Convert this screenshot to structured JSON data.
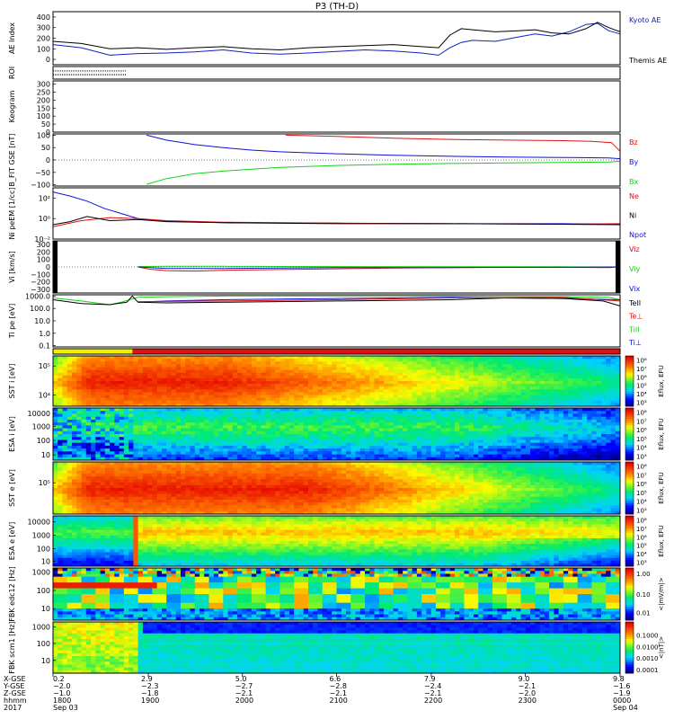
{
  "figure_title": "P3 (TH-D)",
  "colors": {
    "red": "#dd1111",
    "green": "#18d018",
    "blue": "#1010dd",
    "black": "#000000",
    "kyoto": "#1020c0",
    "roi_red": "#cc3300",
    "roi_blue": "#2233aa"
  },
  "chart_data": [
    {
      "id": "ae",
      "type": "line",
      "ylabel": "AE Index",
      "ylim": [
        -50,
        450
      ],
      "yticks": [
        "400",
        "300",
        "200",
        "100",
        "0"
      ],
      "ytick_values": [
        400,
        300,
        200,
        100,
        0
      ],
      "legend": [
        "Kyoto AE",
        "Themis AE"
      ],
      "series": [
        {
          "name": "Kyoto AE",
          "color": "#1020c0",
          "x": [
            0.0,
            0.05,
            0.1,
            0.15,
            0.2,
            0.25,
            0.3,
            0.35,
            0.4,
            0.45,
            0.5,
            0.55,
            0.6,
            0.65,
            0.68,
            0.7,
            0.72,
            0.74,
            0.78,
            0.82,
            0.85,
            0.88,
            0.91,
            0.94,
            0.96,
            0.98,
            1.0
          ],
          "y": [
            140,
            110,
            40,
            55,
            60,
            70,
            90,
            60,
            50,
            60,
            75,
            90,
            80,
            60,
            40,
            110,
            160,
            180,
            170,
            210,
            240,
            220,
            260,
            330,
            340,
            270,
            240
          ]
        },
        {
          "name": "Themis AE",
          "color": "#000000",
          "x": [
            0.0,
            0.05,
            0.1,
            0.15,
            0.2,
            0.25,
            0.3,
            0.35,
            0.4,
            0.45,
            0.5,
            0.55,
            0.6,
            0.65,
            0.68,
            0.7,
            0.72,
            0.74,
            0.78,
            0.82,
            0.85,
            0.88,
            0.91,
            0.94,
            0.96,
            0.98,
            1.0
          ],
          "y": [
            170,
            150,
            100,
            110,
            95,
            110,
            120,
            100,
            90,
            110,
            120,
            130,
            140,
            120,
            110,
            230,
            290,
            280,
            260,
            270,
            280,
            250,
            240,
            290,
            350,
            300,
            260
          ]
        }
      ]
    },
    {
      "id": "roi",
      "type": "line",
      "ylabel": "ROI",
      "bars": [
        {
          "name": "roi-red",
          "color": "#cc3300",
          "x0": 0.0,
          "x1": 0.13
        },
        {
          "name": "roi-blue",
          "color": "#2233aa",
          "x0": 0.0,
          "x1": 0.13
        }
      ]
    },
    {
      "id": "keogram",
      "type": "line",
      "ylabel": "Keogram",
      "ylim": [
        0,
        320
      ],
      "yticks": [
        "300",
        "250",
        "200",
        "150",
        "100",
        "50",
        "0"
      ],
      "ytick_values": [
        300,
        250,
        200,
        150,
        100,
        50,
        0
      ]
    },
    {
      "id": "bfield",
      "type": "line",
      "ylabel": "B_FIT GSE [nT]",
      "ylim": [
        -105,
        105
      ],
      "yticks": [
        "100",
        "50",
        "0",
        "−50",
        "−100"
      ],
      "ytick_values": [
        100,
        50,
        0,
        -50,
        -100
      ],
      "legend": [
        "Bz",
        "By",
        "Bx"
      ],
      "series": [
        {
          "name": "Bz",
          "color": "#dd1111",
          "x": [
            0.41,
            0.5,
            0.6,
            0.7,
            0.8,
            0.9,
            0.95,
            0.985,
            1.0
          ],
          "y": [
            100,
            95,
            88,
            83,
            80,
            78,
            75,
            70,
            35
          ]
        },
        {
          "name": "By",
          "color": "#1010dd",
          "x": [
            0.165,
            0.2,
            0.25,
            0.3,
            0.35,
            0.4,
            0.5,
            0.6,
            0.7,
            0.8,
            0.9,
            0.98,
            1.0
          ],
          "y": [
            100,
            80,
            62,
            50,
            40,
            33,
            25,
            19,
            15,
            12,
            10,
            8,
            5
          ]
        },
        {
          "name": "Bx",
          "color": "#18d018",
          "x": [
            0.165,
            0.2,
            0.25,
            0.3,
            0.35,
            0.4,
            0.5,
            0.6,
            0.7,
            0.8,
            0.9,
            0.98,
            1.0
          ],
          "y": [
            -98,
            -75,
            -55,
            -45,
            -37,
            -30,
            -22,
            -17,
            -14,
            -12,
            -10,
            -8,
            -5
          ]
        }
      ]
    },
    {
      "id": "density",
      "type": "line",
      "ylabel": "Ni peEM [1/cc]",
      "ylim": [
        -2,
        3
      ],
      "yticks": [
        "10²",
        "10⁰",
        "10⁻²"
      ],
      "ytick_values": [
        2,
        0,
        -2
      ],
      "legend": [
        "Ne",
        "Ni",
        "Npot"
      ],
      "series": [
        {
          "name": "Npot",
          "color": "#1010dd",
          "x": [
            0.0,
            0.03,
            0.06,
            0.09,
            0.12,
            0.15,
            0.2,
            0.3,
            0.5,
            0.7,
            0.9,
            1.0
          ],
          "y": [
            2.6,
            2.2,
            1.7,
            1.0,
            0.5,
            0.0,
            -0.25,
            -0.4,
            -0.45,
            -0.5,
            -0.5,
            -0.55
          ]
        },
        {
          "name": "Ne",
          "color": "#dd1111",
          "x": [
            0.0,
            0.05,
            0.1,
            0.15,
            0.2,
            0.3,
            0.5,
            0.7,
            0.9,
            1.0
          ],
          "y": [
            -0.8,
            -0.2,
            0.1,
            0.0,
            -0.2,
            -0.35,
            -0.45,
            -0.5,
            -0.55,
            -0.5
          ]
        },
        {
          "name": "Ni",
          "color": "#000000",
          "x": [
            0.0,
            0.03,
            0.06,
            0.1,
            0.15,
            0.2,
            0.3,
            0.5,
            0.7,
            0.9,
            1.0
          ],
          "y": [
            -0.6,
            -0.3,
            0.2,
            -0.2,
            -0.1,
            -0.3,
            -0.4,
            -0.5,
            -0.5,
            -0.55,
            -0.6
          ]
        }
      ]
    },
    {
      "id": "velocity",
      "type": "line",
      "ylabel": "Vi [km/s]",
      "ylim": [
        -350,
        350
      ],
      "yticks": [
        "300",
        "200",
        "100",
        "0",
        "−100",
        "−200",
        "−300"
      ],
      "ytick_values": [
        300,
        200,
        100,
        0,
        -100,
        -200,
        -300
      ],
      "legend": [
        "Viz",
        "Viy",
        "Vix"
      ],
      "series": [
        {
          "name": "Viz",
          "color": "#dd1111",
          "x": [
            0.15,
            0.17,
            0.2,
            0.25,
            0.3,
            0.4,
            0.5,
            0.6,
            0.7,
            0.8,
            0.9,
            0.98,
            1.0
          ],
          "y": [
            0,
            -30,
            -50,
            -55,
            -45,
            -35,
            -25,
            -15,
            -10,
            -5,
            -5,
            -10,
            0
          ]
        },
        {
          "name": "Viy",
          "color": "#18d018",
          "x": [
            0.15,
            0.2,
            0.3,
            0.5,
            0.7,
            0.9,
            1.0
          ],
          "y": [
            5,
            10,
            8,
            5,
            3,
            2,
            0
          ]
        },
        {
          "name": "Vix",
          "color": "#1010dd",
          "x": [
            0.15,
            0.2,
            0.3,
            0.4,
            0.5,
            0.7,
            0.9,
            1.0
          ],
          "y": [
            0,
            -20,
            -20,
            -15,
            -10,
            -8,
            -5,
            0
          ]
        }
      ]
    },
    {
      "id": "temperature",
      "type": "line",
      "ylabel": "Ti pe [eV]",
      "ylim": [
        -1.1,
        3.1
      ],
      "yticks": [
        "1000.0",
        "100.0",
        "10.0",
        "1.0",
        "0.1"
      ],
      "ytick_values": [
        3,
        2,
        1,
        0,
        -1
      ],
      "legend": [
        "TeII",
        "Te⊥",
        "TiII",
        "Ti⊥"
      ],
      "series": [
        {
          "name": "TiII",
          "color": "#18d018",
          "x": [
            0.0,
            0.05,
            0.1,
            0.12,
            0.15,
            0.2,
            0.3,
            0.5,
            0.7,
            0.9,
            0.98,
            1.0
          ],
          "y": [
            2.85,
            2.6,
            2.3,
            2.5,
            2.9,
            2.95,
            3.0,
            3.0,
            3.0,
            2.95,
            2.9,
            2.7
          ]
        },
        {
          "name": "Ti⊥",
          "color": "#1010dd",
          "x": [
            0.15,
            0.2,
            0.3,
            0.4,
            0.5,
            0.6,
            0.7,
            0.8,
            0.9,
            1.0
          ],
          "y": [
            2.5,
            2.6,
            2.7,
            2.75,
            2.8,
            2.85,
            2.9,
            2.85,
            2.8,
            2.7
          ]
        },
        {
          "name": "TeII",
          "color": "#000000",
          "x": [
            0.0,
            0.05,
            0.1,
            0.13,
            0.14,
            0.15,
            0.2,
            0.3,
            0.5,
            0.7,
            0.8,
            0.9,
            0.97,
            1.0
          ],
          "y": [
            2.7,
            2.4,
            2.3,
            2.5,
            3.0,
            2.5,
            2.45,
            2.5,
            2.6,
            2.7,
            2.85,
            2.8,
            2.6,
            2.2
          ]
        },
        {
          "name": "Te⊥",
          "color": "#dd1111",
          "x": [
            0.15,
            0.3,
            0.5,
            0.7,
            0.9,
            1.0
          ],
          "y": [
            2.55,
            2.6,
            2.7,
            2.85,
            2.9,
            2.6
          ]
        }
      ]
    },
    {
      "id": "mode",
      "type": "heatmap",
      "ylabel": "",
      "segments": [
        {
          "x0": 0.0,
          "x1": 0.14,
          "color": "#f0f000"
        },
        {
          "x0": 0.14,
          "x1": 1.0,
          "color": "#e01010"
        }
      ]
    },
    {
      "id": "sst_i",
      "type": "heatmap",
      "ylabel": "SST i [eV]",
      "yticks": [
        "10⁵",
        "10⁴"
      ],
      "ytick_values": [
        0.2,
        0.78
      ],
      "colorbar_ticks": [
        "10⁸",
        "10⁷",
        "10⁶",
        "10⁵",
        "10⁴",
        "10³"
      ],
      "colorbar_label": "Eflux, EFU",
      "profile": "sst",
      "peak": 0.3,
      "decay": 0.68
    },
    {
      "id": "esa_i",
      "type": "heatmap",
      "ylabel": "ESA i [eV]",
      "yticks": [
        "10000",
        "1000",
        "100",
        "10"
      ],
      "ytick_values": [
        0.1,
        0.35,
        0.62,
        0.9
      ],
      "colorbar_ticks": [
        "10⁸",
        "10⁷",
        "10⁶",
        "10⁵",
        "10⁴",
        "10³"
      ],
      "colorbar_label": "Eflux, EFU",
      "profile": "esa_i"
    },
    {
      "id": "sst_e",
      "type": "heatmap",
      "ylabel": "SST e [eV]",
      "yticks": [
        "10⁵"
      ],
      "ytick_values": [
        0.4
      ],
      "colorbar_ticks": [
        "10⁸",
        "10⁷",
        "10⁶",
        "10⁵",
        "10⁴",
        "10³"
      ],
      "colorbar_label": "Eflux, EFU",
      "profile": "sst",
      "peak": 0.45,
      "decay": 0.9
    },
    {
      "id": "esa_e",
      "type": "heatmap",
      "ylabel": "ESA e [eV]",
      "yticks": [
        "10000",
        "1000",
        "100",
        "10"
      ],
      "ytick_values": [
        0.12,
        0.38,
        0.65,
        0.9
      ],
      "colorbar_ticks": [
        "10⁸",
        "10⁷",
        "10⁶",
        "10⁵",
        "10⁴",
        "10³"
      ],
      "colorbar_label": "Eflux, EFU",
      "profile": "esa_e"
    },
    {
      "id": "fbk_edc",
      "type": "heatmap",
      "ylabel": "FBK edc12 [Hz]",
      "yticks": [
        "1000",
        "100",
        "10"
      ],
      "ytick_values": [
        0.08,
        0.43,
        0.78
      ],
      "colorbar_ticks": [
        "1.00",
        "0.10",
        "0.01"
      ],
      "colorbar_tick_values": [
        0.1,
        0.5,
        0.85
      ],
      "colorbar_label": "<|mV/m|>",
      "profile": "fbk_edc"
    },
    {
      "id": "fbk_scm",
      "type": "heatmap",
      "ylabel": "FBK scm1 [Hz]",
      "yticks": [
        "1000",
        "100",
        "10"
      ],
      "ytick_values": [
        0.1,
        0.42,
        0.75
      ],
      "colorbar_ticks": [
        "0.1000",
        "0.0100",
        "0.0010",
        "0.0001"
      ],
      "colorbar_tick_values": [
        0.25,
        0.48,
        0.7,
        0.93
      ],
      "colorbar_label": "<|nT|>",
      "profile": "fbk_scm"
    }
  ],
  "footer": {
    "row_labels": [
      "X-GSE",
      "Y-GSE",
      "Z-GSE",
      "hhmm",
      "2017"
    ],
    "columns": [
      {
        "pos": 0.0,
        "vals": [
          "0.2",
          "−2.0",
          "−1.0",
          "1800",
          "Sep 03"
        ]
      },
      {
        "pos": 0.168,
        "vals": [
          "2.9",
          "−2.3",
          "−1.8",
          "1900",
          ""
        ]
      },
      {
        "pos": 0.334,
        "vals": [
          "5.0",
          "−2.7",
          "−2.1",
          "2000",
          ""
        ]
      },
      {
        "pos": 0.5,
        "vals": [
          "6.6",
          "−2.8",
          "−2.1",
          "2100",
          ""
        ]
      },
      {
        "pos": 0.667,
        "vals": [
          "7.9",
          "−2.4",
          "−2.1",
          "2200",
          ""
        ]
      },
      {
        "pos": 0.833,
        "vals": [
          "9.0",
          "−2.1",
          "−2.0",
          "2300",
          ""
        ]
      },
      {
        "pos": 1.0,
        "vals": [
          "9.8",
          "−1.6",
          "−1.9",
          "0000",
          "Sep 04"
        ]
      }
    ]
  }
}
